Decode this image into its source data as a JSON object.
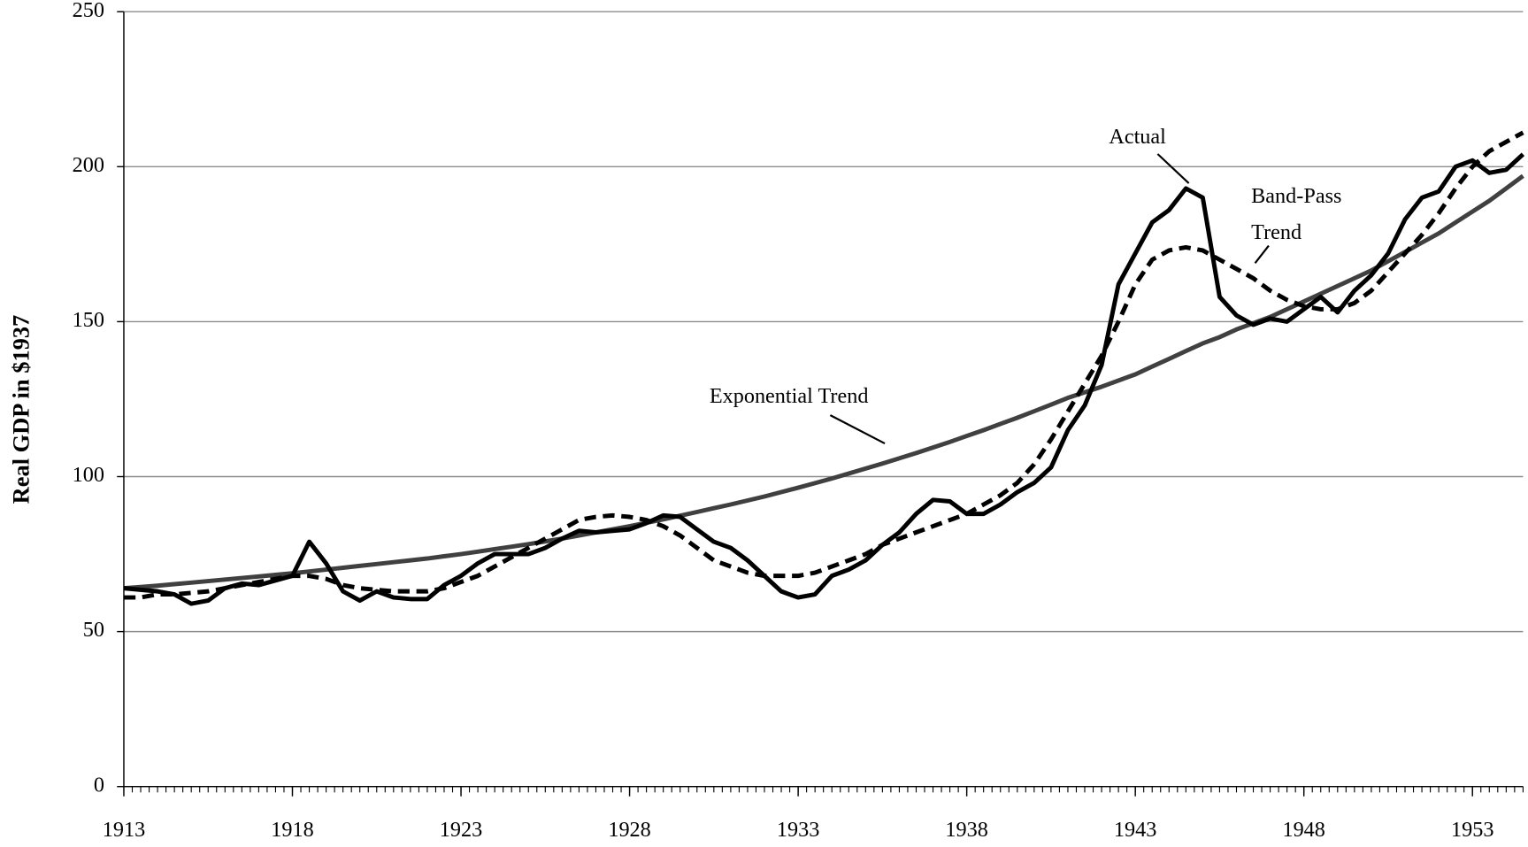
{
  "chart_data": {
    "type": "line",
    "ylabel": "Real GDP in $1937",
    "xlim": [
      1913,
      1954.5
    ],
    "xticks": [
      1913,
      1918,
      1923,
      1928,
      1933,
      1938,
      1943,
      1948,
      1953
    ],
    "ylim": [
      0,
      250
    ],
    "yticks": [
      0,
      50,
      100,
      150,
      200,
      250
    ],
    "grid": true,
    "x": [
      1913,
      1913.5,
      1914,
      1914.5,
      1915,
      1915.5,
      1916,
      1916.5,
      1917,
      1917.5,
      1918,
      1918.5,
      1919,
      1919.5,
      1920,
      1920.5,
      1921,
      1921.5,
      1922,
      1922.5,
      1923,
      1923.5,
      1924,
      1924.5,
      1925,
      1925.5,
      1926,
      1926.5,
      1927,
      1927.5,
      1928,
      1928.5,
      1929,
      1929.5,
      1930,
      1930.5,
      1931,
      1931.5,
      1932,
      1932.5,
      1933,
      1933.5,
      1934,
      1934.5,
      1935,
      1935.5,
      1936,
      1936.5,
      1937,
      1937.5,
      1938,
      1938.5,
      1939,
      1939.5,
      1940,
      1940.5,
      1941,
      1941.5,
      1942,
      1942.5,
      1943,
      1943.5,
      1944,
      1944.5,
      1945,
      1945.5,
      1946,
      1946.5,
      1947,
      1947.5,
      1948,
      1948.5,
      1949,
      1949.5,
      1950,
      1950.5,
      1951,
      1951.5,
      1952,
      1952.5,
      1953,
      1953.5,
      1954,
      1954.5
    ],
    "series": [
      {
        "name": "Exponential Trend",
        "color": "#404040",
        "linestyle": "solid",
        "values": [
          64,
          64.4,
          64.8,
          65.3,
          65.8,
          66.3,
          66.8,
          67.3,
          67.8,
          68.3,
          68.8,
          69.4,
          70,
          70.6,
          71.2,
          71.8,
          72.4,
          73,
          73.6,
          74.3,
          75,
          75.8,
          76.6,
          77.4,
          78.2,
          79.1,
          80,
          81,
          82,
          83,
          84,
          85.1,
          86.2,
          87.4,
          88.6,
          89.8,
          91,
          92.3,
          93.6,
          95,
          96.4,
          97.9,
          99.4,
          101,
          102.6,
          104.2,
          105.9,
          107.6,
          109.4,
          111.2,
          113.1,
          115,
          117,
          119,
          121.1,
          123.2,
          125.4,
          127.2,
          129,
          131,
          133,
          135.5,
          138,
          140.5,
          143,
          145,
          147.5,
          149.5,
          151.5,
          154,
          156.5,
          159,
          161.5,
          164,
          166.5,
          169.5,
          172.5,
          175.5,
          178.5,
          182,
          185.5,
          189,
          193,
          197
        ]
      },
      {
        "name": "Band-Pass Trend",
        "color": "#000000",
        "linestyle": "dashed",
        "values": [
          61,
          61,
          62,
          62,
          62.5,
          63,
          64,
          65,
          66,
          67,
          68,
          68,
          67,
          65,
          64,
          63.5,
          63,
          63,
          63,
          64,
          66,
          68,
          71,
          74,
          77,
          80,
          83,
          86,
          87,
          87.5,
          87,
          86,
          84,
          81,
          77,
          73,
          71,
          69,
          68,
          68,
          68,
          69,
          71,
          73,
          75,
          78,
          80,
          82,
          84,
          86,
          88,
          91,
          94,
          98,
          104,
          112,
          121,
          130,
          139,
          150,
          162,
          170,
          173,
          174,
          173,
          170,
          167,
          164,
          160,
          157,
          155,
          154,
          154,
          156,
          160,
          166,
          172,
          178,
          185,
          193,
          200,
          205,
          208,
          211
        ]
      },
      {
        "name": "Actual",
        "color": "#000000",
        "linestyle": "solid",
        "values": [
          64,
          63.5,
          63,
          62,
          59,
          60,
          64,
          65.5,
          65,
          66.5,
          68,
          79,
          72,
          63,
          60,
          63,
          61,
          60.5,
          60.5,
          65,
          68,
          72,
          75,
          75,
          75,
          77,
          80,
          82.5,
          82,
          82.5,
          83,
          85,
          87.5,
          87,
          83,
          79,
          77,
          73,
          68,
          63,
          61,
          62,
          68,
          70,
          73,
          78,
          82,
          88,
          92.5,
          92,
          88,
          88,
          91,
          95,
          98,
          103,
          115,
          123,
          136,
          162,
          172,
          182,
          186,
          193,
          190,
          158,
          152,
          149,
          151,
          150,
          154,
          158,
          153,
          160,
          165,
          172,
          183,
          190,
          192,
          200,
          202,
          198,
          199,
          204
        ]
      }
    ]
  }
}
